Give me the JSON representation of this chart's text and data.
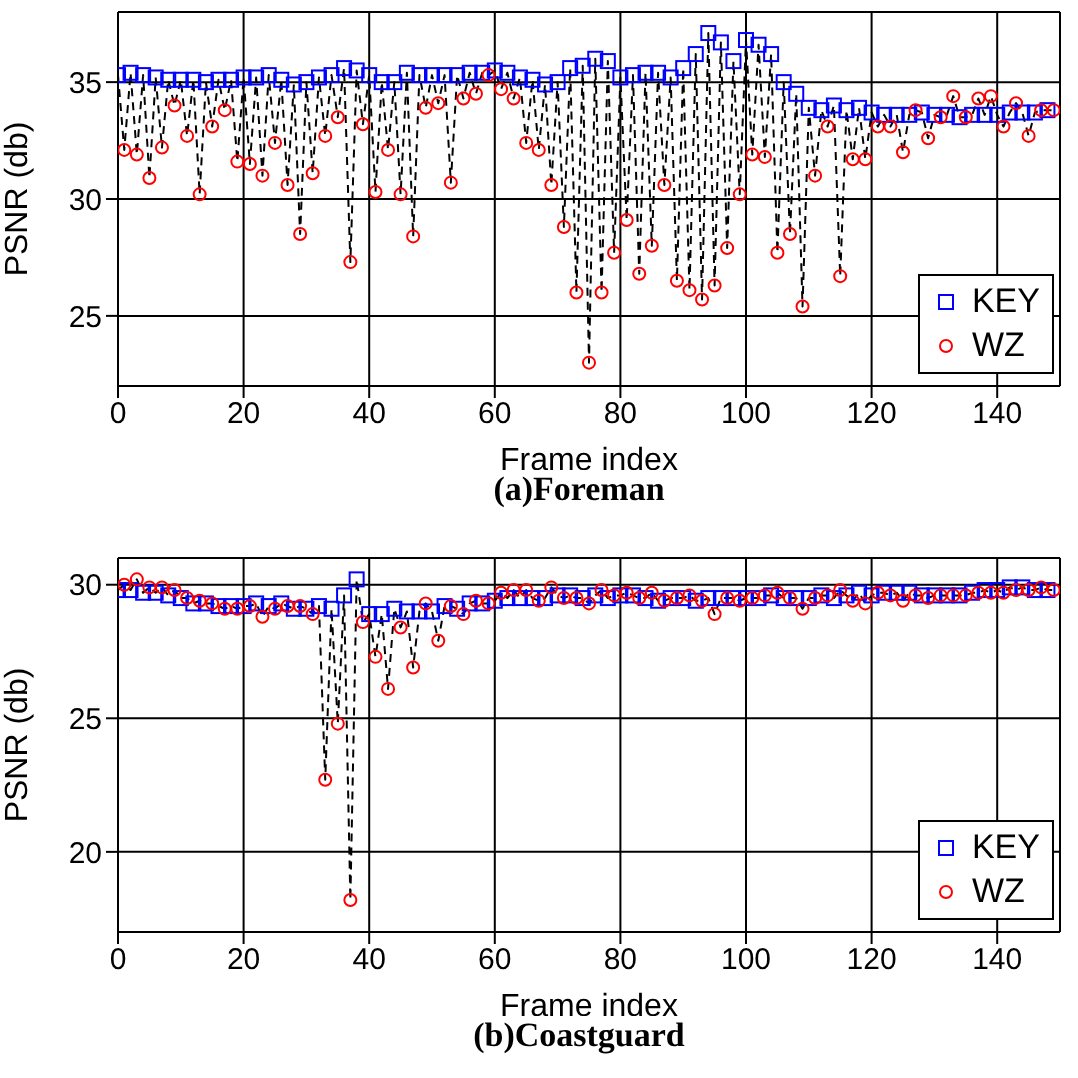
{
  "chart_data": [
    {
      "type": "scatter",
      "title": "(a)Foreman",
      "xlabel": "Frame index",
      "ylabel": "PSNR (db)",
      "xlim": [
        0,
        150
      ],
      "xticks": [
        0,
        20,
        40,
        60,
        80,
        100,
        120,
        140
      ],
      "ylim": [
        22,
        38
      ],
      "yticks": [
        25,
        30,
        35
      ],
      "grid": true,
      "legend": "bottom right",
      "x": [
        0,
        1,
        2,
        3,
        4,
        5,
        6,
        7,
        8,
        9,
        10,
        11,
        12,
        13,
        14,
        15,
        16,
        17,
        18,
        19,
        20,
        21,
        22,
        23,
        24,
        25,
        26,
        27,
        28,
        29,
        30,
        31,
        32,
        33,
        34,
        35,
        36,
        37,
        38,
        39,
        40,
        41,
        42,
        43,
        44,
        45,
        46,
        47,
        48,
        49,
        50,
        51,
        52,
        53,
        54,
        55,
        56,
        57,
        58,
        59,
        60,
        61,
        62,
        63,
        64,
        65,
        66,
        67,
        68,
        69,
        70,
        71,
        72,
        73,
        74,
        75,
        76,
        77,
        78,
        79,
        80,
        81,
        82,
        83,
        84,
        85,
        86,
        87,
        88,
        89,
        90,
        91,
        92,
        93,
        94,
        95,
        96,
        97,
        98,
        99,
        100,
        101,
        102,
        103,
        104,
        105,
        106,
        107,
        108,
        109,
        110,
        111,
        112,
        113,
        114,
        115,
        116,
        117,
        118,
        119,
        120,
        121,
        122,
        123,
        124,
        125,
        126,
        127,
        128,
        129,
        130,
        131,
        132,
        133,
        134,
        135,
        136,
        137,
        138,
        139,
        140,
        141,
        142,
        143,
        144,
        145,
        146,
        147,
        148,
        149
      ],
      "series": [
        {
          "type": "line",
          "color": "#000000",
          "line_style": "dashed",
          "marker": "none",
          "values": [
            35.3,
            32.1,
            35.4,
            31.9,
            35.3,
            30.9,
            35.2,
            32.2,
            35.1,
            34.0,
            35.1,
            32.7,
            35.1,
            30.2,
            35.0,
            33.1,
            35.1,
            33.8,
            35.1,
            31.6,
            35.2,
            31.5,
            35.2,
            31.0,
            35.3,
            32.4,
            35.1,
            30.6,
            34.9,
            28.5,
            35.0,
            31.1,
            35.2,
            32.7,
            35.3,
            33.5,
            35.6,
            27.3,
            35.5,
            33.2,
            35.3,
            30.3,
            35.0,
            32.1,
            35.0,
            30.2,
            35.4,
            28.4,
            35.3,
            33.9,
            35.3,
            34.1,
            35.3,
            30.7,
            35.3,
            34.3,
            35.4,
            34.5,
            35.4,
            35.3,
            35.5,
            34.7,
            35.4,
            34.3,
            35.2,
            32.4,
            35.1,
            32.1,
            34.9,
            30.6,
            35.0,
            28.8,
            35.6,
            26.0,
            35.7,
            23.0,
            36.0,
            26.0,
            35.9,
            27.7,
            35.2,
            29.1,
            35.3,
            26.8,
            35.4,
            28.0,
            35.4,
            30.6,
            35.2,
            26.5,
            35.6,
            26.1,
            36.2,
            25.7,
            37.1,
            26.3,
            36.7,
            27.9,
            35.9,
            30.2,
            36.8,
            31.9,
            36.6,
            31.8,
            36.2,
            27.7,
            35.0,
            28.5,
            34.5,
            25.4,
            33.9,
            31.0,
            33.8,
            33.1,
            34.0,
            26.7,
            33.8,
            31.7,
            33.9,
            31.7,
            33.7,
            33.1,
            33.6,
            33.1,
            33.6,
            32.0,
            33.6,
            33.8,
            33.7,
            32.6,
            33.6,
            33.5,
            33.6,
            34.4,
            33.5,
            33.5,
            33.6,
            34.3,
            33.6,
            34.4,
            33.6,
            33.1,
            33.7,
            34.1,
            33.7,
            32.7,
            33.7,
            33.8,
            33.8,
            33.8
          ]
        },
        {
          "type": "scatter",
          "name": "KEY",
          "color": "#0000ff",
          "marker": "square",
          "x": [
            0,
            2,
            4,
            6,
            8,
            10,
            12,
            14,
            16,
            18,
            20,
            22,
            24,
            26,
            28,
            30,
            32,
            34,
            36,
            38,
            40,
            42,
            44,
            46,
            48,
            50,
            52,
            54,
            56,
            58,
            60,
            62,
            64,
            66,
            68,
            70,
            72,
            74,
            76,
            78,
            80,
            82,
            84,
            86,
            88,
            90,
            92,
            94,
            96,
            98,
            100,
            102,
            104,
            106,
            108,
            110,
            112,
            114,
            116,
            118,
            120,
            122,
            124,
            126,
            128,
            130,
            132,
            134,
            136,
            138,
            140,
            142,
            144,
            146,
            148
          ],
          "values": [
            35.3,
            35.4,
            35.3,
            35.2,
            35.1,
            35.1,
            35.1,
            35.0,
            35.1,
            35.1,
            35.2,
            35.2,
            35.3,
            35.1,
            34.9,
            35.0,
            35.2,
            35.3,
            35.6,
            35.5,
            35.3,
            35.0,
            35.0,
            35.4,
            35.3,
            35.3,
            35.3,
            35.3,
            35.4,
            35.4,
            35.5,
            35.4,
            35.2,
            35.1,
            34.9,
            35.0,
            35.6,
            35.7,
            36.0,
            35.9,
            35.2,
            35.3,
            35.4,
            35.4,
            35.2,
            35.6,
            36.2,
            37.1,
            36.7,
            35.9,
            36.8,
            36.6,
            36.2,
            35.0,
            34.5,
            33.9,
            33.8,
            34.0,
            33.8,
            33.9,
            33.7,
            33.6,
            33.6,
            33.6,
            33.7,
            33.6,
            33.6,
            33.5,
            33.6,
            33.6,
            33.6,
            33.7,
            33.7,
            33.7,
            33.8
          ]
        },
        {
          "type": "scatter",
          "name": "WZ",
          "color": "#ff0000",
          "marker": "circle",
          "x": [
            1,
            3,
            5,
            7,
            9,
            11,
            13,
            15,
            17,
            19,
            21,
            23,
            25,
            27,
            29,
            31,
            33,
            35,
            37,
            39,
            41,
            43,
            45,
            47,
            49,
            51,
            53,
            55,
            57,
            59,
            61,
            63,
            65,
            67,
            69,
            71,
            73,
            75,
            77,
            79,
            81,
            83,
            85,
            87,
            89,
            91,
            93,
            95,
            97,
            99,
            101,
            103,
            105,
            107,
            109,
            111,
            113,
            115,
            117,
            119,
            121,
            123,
            125,
            127,
            129,
            131,
            133,
            135,
            137,
            139,
            141,
            143,
            145,
            147,
            149
          ],
          "values": [
            32.1,
            31.9,
            30.9,
            32.2,
            34.0,
            32.7,
            30.2,
            33.1,
            33.8,
            31.6,
            31.5,
            31.0,
            32.4,
            30.6,
            28.5,
            31.1,
            32.7,
            33.5,
            27.3,
            33.2,
            30.3,
            32.1,
            30.2,
            28.4,
            33.9,
            34.1,
            30.7,
            34.3,
            34.5,
            35.3,
            34.7,
            34.3,
            32.4,
            32.1,
            30.6,
            28.8,
            26.0,
            23.0,
            26.0,
            27.7,
            29.1,
            26.8,
            28.0,
            30.6,
            26.5,
            26.1,
            25.7,
            26.3,
            27.9,
            30.2,
            31.9,
            31.8,
            27.7,
            28.5,
            25.4,
            31.0,
            33.1,
            26.7,
            31.7,
            31.7,
            33.1,
            33.1,
            32.0,
            33.8,
            32.6,
            33.5,
            34.4,
            33.5,
            34.3,
            34.4,
            33.1,
            34.1,
            32.7,
            33.8,
            33.8
          ]
        }
      ]
    },
    {
      "type": "scatter",
      "title": "(b)Coastguard",
      "xlabel": "Frame index",
      "ylabel": "PSNR (db)",
      "xlim": [
        0,
        150
      ],
      "xticks": [
        0,
        20,
        40,
        60,
        80,
        100,
        120,
        140
      ],
      "ylim": [
        17,
        31
      ],
      "yticks": [
        20,
        25,
        30
      ],
      "grid": true,
      "legend": "bottom right",
      "x": [
        0,
        1,
        2,
        3,
        4,
        5,
        6,
        7,
        8,
        9,
        10,
        11,
        12,
        13,
        14,
        15,
        16,
        17,
        18,
        19,
        20,
        21,
        22,
        23,
        24,
        25,
        26,
        27,
        28,
        29,
        30,
        31,
        32,
        33,
        34,
        35,
        36,
        37,
        38,
        39,
        40,
        41,
        42,
        43,
        44,
        45,
        46,
        47,
        48,
        49,
        50,
        51,
        52,
        53,
        54,
        55,
        56,
        57,
        58,
        59,
        60,
        61,
        62,
        63,
        64,
        65,
        66,
        67,
        68,
        69,
        70,
        71,
        72,
        73,
        74,
        75,
        76,
        77,
        78,
        79,
        80,
        81,
        82,
        83,
        84,
        85,
        86,
        87,
        88,
        89,
        90,
        91,
        92,
        93,
        94,
        95,
        96,
        97,
        98,
        99,
        100,
        101,
        102,
        103,
        104,
        105,
        106,
        107,
        108,
        109,
        110,
        111,
        112,
        113,
        114,
        115,
        116,
        117,
        118,
        119,
        120,
        121,
        122,
        123,
        124,
        125,
        126,
        127,
        128,
        129,
        130,
        131,
        132,
        133,
        134,
        135,
        136,
        137,
        138,
        139,
        140,
        141,
        142,
        143,
        144,
        145,
        146,
        147,
        148,
        149
      ],
      "series": [
        {
          "type": "line",
          "color": "#000000",
          "line_style": "dashed",
          "marker": "none",
          "values": [
            29.8,
            30.0,
            29.8,
            30.2,
            29.7,
            29.9,
            29.7,
            29.9,
            29.6,
            29.8,
            29.5,
            29.5,
            29.3,
            29.4,
            29.3,
            29.3,
            29.2,
            29.1,
            29.2,
            29.1,
            29.2,
            29.2,
            29.3,
            28.8,
            29.2,
            29.1,
            29.3,
            29.2,
            29.1,
            29.2,
            29.1,
            28.9,
            29.2,
            22.7,
            29.1,
            24.8,
            29.6,
            18.2,
            30.2,
            28.6,
            28.9,
            27.3,
            28.9,
            26.1,
            29.1,
            28.4,
            29.0,
            26.9,
            29.0,
            29.3,
            29.0,
            27.9,
            29.2,
            29.2,
            29.1,
            28.9,
            29.3,
            29.4,
            29.3,
            29.3,
            29.4,
            29.7,
            29.5,
            29.8,
            29.5,
            29.8,
            29.5,
            29.4,
            29.5,
            29.9,
            29.6,
            29.5,
            29.6,
            29.5,
            29.5,
            29.3,
            29.6,
            29.8,
            29.5,
            29.6,
            29.6,
            29.7,
            29.6,
            29.5,
            29.5,
            29.7,
            29.4,
            29.4,
            29.5,
            29.5,
            29.5,
            29.6,
            29.4,
            29.4,
            29.5,
            28.9,
            29.5,
            29.5,
            29.5,
            29.4,
            29.5,
            29.5,
            29.5,
            29.6,
            29.6,
            29.7,
            29.5,
            29.5,
            29.5,
            29.1,
            29.5,
            29.5,
            29.6,
            29.6,
            29.5,
            29.8,
            29.6,
            29.4,
            29.7,
            29.3,
            29.6,
            29.7,
            29.7,
            29.6,
            29.7,
            29.4,
            29.7,
            29.6,
            29.6,
            29.5,
            29.6,
            29.6,
            29.6,
            29.6,
            29.6,
            29.6,
            29.7,
            29.7,
            29.8,
            29.7,
            29.8,
            29.7,
            29.9,
            29.8,
            29.9,
            29.8,
            29.8,
            29.9,
            29.8,
            29.8
          ]
        },
        {
          "type": "scatter",
          "name": "KEY",
          "color": "#0000ff",
          "marker": "square",
          "x": [
            0,
            2,
            4,
            6,
            8,
            10,
            12,
            14,
            16,
            18,
            20,
            22,
            24,
            26,
            28,
            30,
            32,
            34,
            36,
            38,
            40,
            42,
            44,
            46,
            48,
            50,
            52,
            54,
            56,
            58,
            60,
            62,
            64,
            66,
            68,
            70,
            72,
            74,
            76,
            78,
            80,
            82,
            84,
            86,
            88,
            90,
            92,
            94,
            96,
            98,
            100,
            102,
            104,
            106,
            108,
            110,
            112,
            114,
            116,
            118,
            120,
            122,
            124,
            126,
            128,
            130,
            132,
            134,
            136,
            138,
            140,
            142,
            144,
            146,
            148
          ],
          "values": [
            29.8,
            29.8,
            29.7,
            29.7,
            29.6,
            29.5,
            29.3,
            29.3,
            29.2,
            29.2,
            29.2,
            29.3,
            29.2,
            29.3,
            29.1,
            29.1,
            29.2,
            29.1,
            29.6,
            30.2,
            28.9,
            28.9,
            29.1,
            29.0,
            29.0,
            29.0,
            29.2,
            29.1,
            29.3,
            29.3,
            29.4,
            29.5,
            29.5,
            29.5,
            29.5,
            29.6,
            29.6,
            29.5,
            29.6,
            29.5,
            29.6,
            29.6,
            29.5,
            29.4,
            29.5,
            29.5,
            29.4,
            29.5,
            29.5,
            29.5,
            29.5,
            29.5,
            29.6,
            29.5,
            29.5,
            29.5,
            29.6,
            29.5,
            29.6,
            29.7,
            29.6,
            29.7,
            29.7,
            29.7,
            29.6,
            29.6,
            29.6,
            29.6,
            29.7,
            29.8,
            29.8,
            29.9,
            29.9,
            29.8,
            29.8
          ]
        },
        {
          "type": "scatter",
          "name": "WZ",
          "color": "#ff0000",
          "marker": "circle",
          "x": [
            1,
            3,
            5,
            7,
            9,
            11,
            13,
            15,
            17,
            19,
            21,
            23,
            25,
            27,
            29,
            31,
            33,
            35,
            37,
            39,
            41,
            43,
            45,
            47,
            49,
            51,
            53,
            55,
            57,
            59,
            61,
            63,
            65,
            67,
            69,
            71,
            73,
            75,
            77,
            79,
            81,
            83,
            85,
            87,
            89,
            91,
            93,
            95,
            97,
            99,
            101,
            103,
            105,
            107,
            109,
            111,
            113,
            115,
            117,
            119,
            121,
            123,
            125,
            127,
            129,
            131,
            133,
            135,
            137,
            139,
            141,
            143,
            145,
            147,
            149
          ],
          "values": [
            30.0,
            30.2,
            29.9,
            29.9,
            29.8,
            29.5,
            29.4,
            29.3,
            29.1,
            29.1,
            29.2,
            28.8,
            29.1,
            29.2,
            29.2,
            28.9,
            22.7,
            24.8,
            18.2,
            28.6,
            27.3,
            26.1,
            28.4,
            26.9,
            29.3,
            27.9,
            29.2,
            28.9,
            29.4,
            29.3,
            29.7,
            29.8,
            29.8,
            29.4,
            29.9,
            29.5,
            29.5,
            29.3,
            29.8,
            29.6,
            29.7,
            29.5,
            29.7,
            29.4,
            29.5,
            29.6,
            29.4,
            28.9,
            29.5,
            29.4,
            29.5,
            29.6,
            29.7,
            29.5,
            29.1,
            29.5,
            29.6,
            29.8,
            29.4,
            29.3,
            29.7,
            29.6,
            29.4,
            29.6,
            29.5,
            29.6,
            29.6,
            29.6,
            29.7,
            29.7,
            29.7,
            29.8,
            29.8,
            29.9,
            29.8
          ]
        }
      ]
    }
  ]
}
